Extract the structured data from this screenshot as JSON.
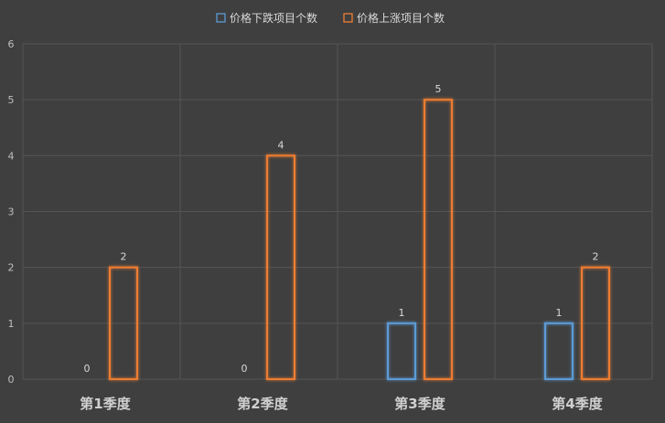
{
  "chart_data": {
    "type": "bar",
    "categories": [
      "第1季度",
      "第2季度",
      "第3季度",
      "第4季度"
    ],
    "series": [
      {
        "name": "价格下跌项目个数",
        "values": [
          0,
          0,
          1,
          1
        ],
        "color": "#5b9bd5"
      },
      {
        "name": "价格上涨项目个数",
        "values": [
          2,
          4,
          5,
          2
        ],
        "color": "#ed7d31"
      }
    ],
    "ylim": [
      0,
      6
    ],
    "yticks": [
      0,
      1,
      2,
      3,
      4,
      5,
      6
    ],
    "grid": true,
    "legend": "top-center",
    "data_labels": true,
    "background": "#3f3f3f",
    "grid_color": "#555555"
  }
}
